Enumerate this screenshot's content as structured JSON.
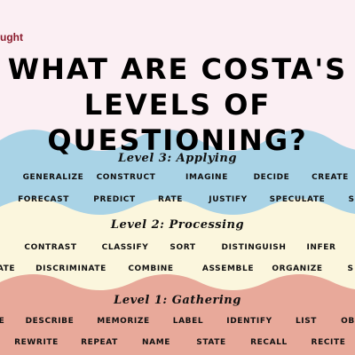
{
  "brand": "ught",
  "title": {
    "line1": "WHAT ARE COSTA'S",
    "line2": "LEVELS OF QUESTIONING?"
  },
  "colors": {
    "pink_bg": "#fbeff3",
    "level3_band": "#a9d3e6",
    "level2_band": "#fbf6dd",
    "level1_band": "#e8a99a"
  },
  "levels": [
    {
      "title": "Level 3: Applying",
      "rows": [
        [
          "GENERALIZE",
          "CONSTRUCT",
          "IMAGINE",
          "DECIDE",
          "CREATE"
        ],
        [
          "FORECAST",
          "PREDICT",
          "RATE",
          "JUSTIFY",
          "SPECULATE",
          "S"
        ]
      ]
    },
    {
      "title": "Level 2: Processing",
      "rows": [
        [
          "CONTRAST",
          "CLASSIFY",
          "SORT",
          "DISTINGUISH",
          "INFER"
        ],
        [
          "ATE",
          "DISCRIMINATE",
          "COMBINE",
          "ASSEMBLE",
          "ORGANIZE",
          "S"
        ]
      ]
    },
    {
      "title": "Level 1: Gathering",
      "rows": [
        [
          "E",
          "DESCRIBE",
          "MEMORIZE",
          "LABEL",
          "IDENTIFY",
          "LIST",
          "OB"
        ],
        [
          "REWRITE",
          "REPEAT",
          "NAME",
          "STATE",
          "RECALL",
          "RECITE"
        ]
      ]
    }
  ]
}
